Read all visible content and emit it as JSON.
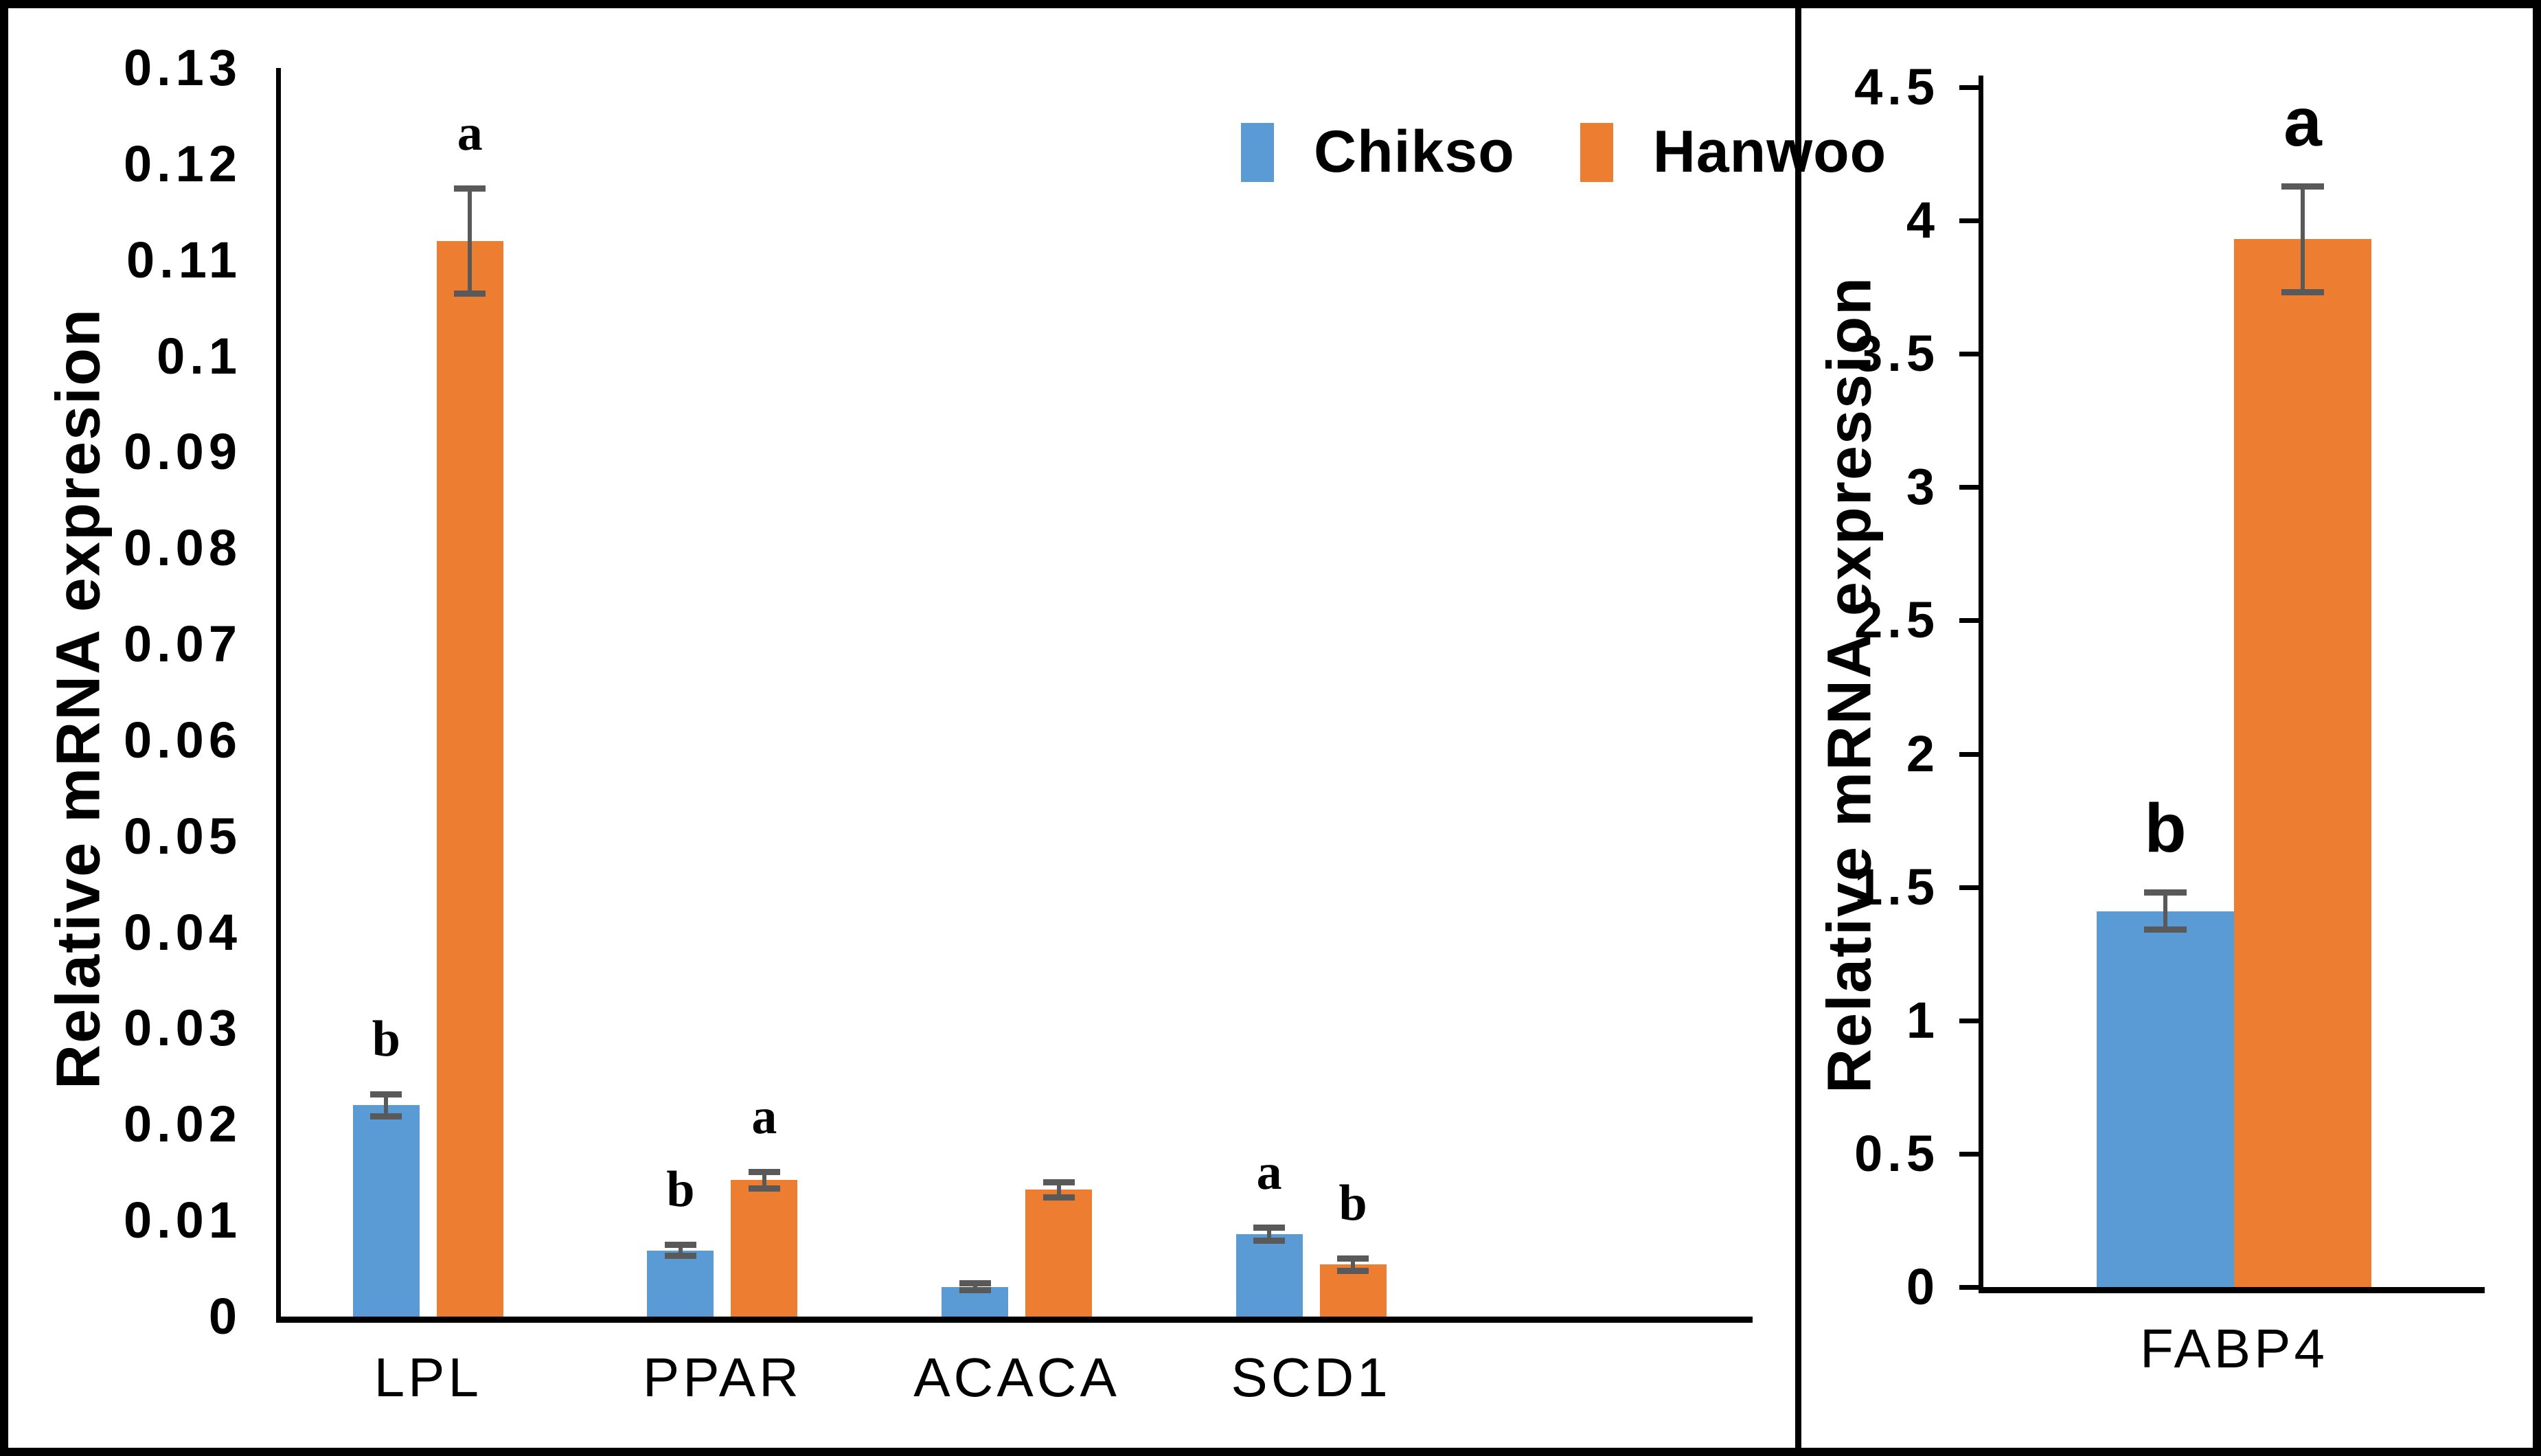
{
  "figure": {
    "background": "#ffffff",
    "border_color": "#000000",
    "panel_count": 2
  },
  "colors": {
    "chikso_blue": "#5B9BD5",
    "hanwoo_orange": "#ED7D31",
    "error_bar_gray": "#595959",
    "axis_black": "#000000"
  },
  "legend": {
    "position": "top-right-of-left-panel",
    "items": [
      {
        "label": "Chikso",
        "color": "#5B9BD5"
      },
      {
        "label": "Hanwoo",
        "color": "#ED7D31"
      }
    ]
  },
  "chart_data": [
    {
      "type": "bar",
      "panel": "left",
      "title": "",
      "xlabel": "",
      "ylabel": "Relative mRNA expresion",
      "ylim": [
        0,
        0.13
      ],
      "ytick_step": 0.01,
      "ytick_labels": [
        "0",
        "0.01",
        "0.02",
        "0.03",
        "0.04",
        "0.05",
        "0.06",
        "0.07",
        "0.08",
        "0.09",
        "0.1",
        "0.11",
        "0.12",
        "0.13"
      ],
      "grid": false,
      "categories": [
        "LPL",
        "PPAR",
        "ACACA",
        "SCD1"
      ],
      "series": [
        {
          "name": "Chikso",
          "color": "#5B9BD5",
          "values": [
            0.022,
            0.0069,
            0.0031,
            0.0086
          ],
          "errors": [
            0.0012,
            0.0006,
            0.0004,
            0.0007
          ],
          "letters": [
            "b",
            "b",
            "",
            "a"
          ]
        },
        {
          "name": "Hanwoo",
          "color": "#ED7D31",
          "values": [
            0.112,
            0.0142,
            0.0132,
            0.0054
          ],
          "errors": [
            0.0055,
            0.0009,
            0.0008,
            0.0007
          ],
          "letters": [
            "a",
            "a",
            "",
            "b"
          ]
        }
      ]
    },
    {
      "type": "bar",
      "panel": "right",
      "title": "",
      "xlabel": "",
      "ylabel": "Relative mRNA expression",
      "ylim": [
        0,
        4.5
      ],
      "ytick_step": 0.5,
      "ytick_labels": [
        "0",
        "0.5",
        "1",
        "1.5",
        "2",
        "2.5",
        "3",
        "3.5",
        "4",
        "4.5"
      ],
      "grid": false,
      "categories": [
        "FABP4"
      ],
      "series": [
        {
          "name": "Chikso",
          "color": "#5B9BD5",
          "values": [
            1.41
          ],
          "errors": [
            0.07
          ],
          "letters": [
            "b"
          ]
        },
        {
          "name": "Hanwoo",
          "color": "#ED7D31",
          "values": [
            3.93
          ],
          "errors": [
            0.2
          ],
          "letters": [
            "a"
          ]
        }
      ]
    }
  ]
}
